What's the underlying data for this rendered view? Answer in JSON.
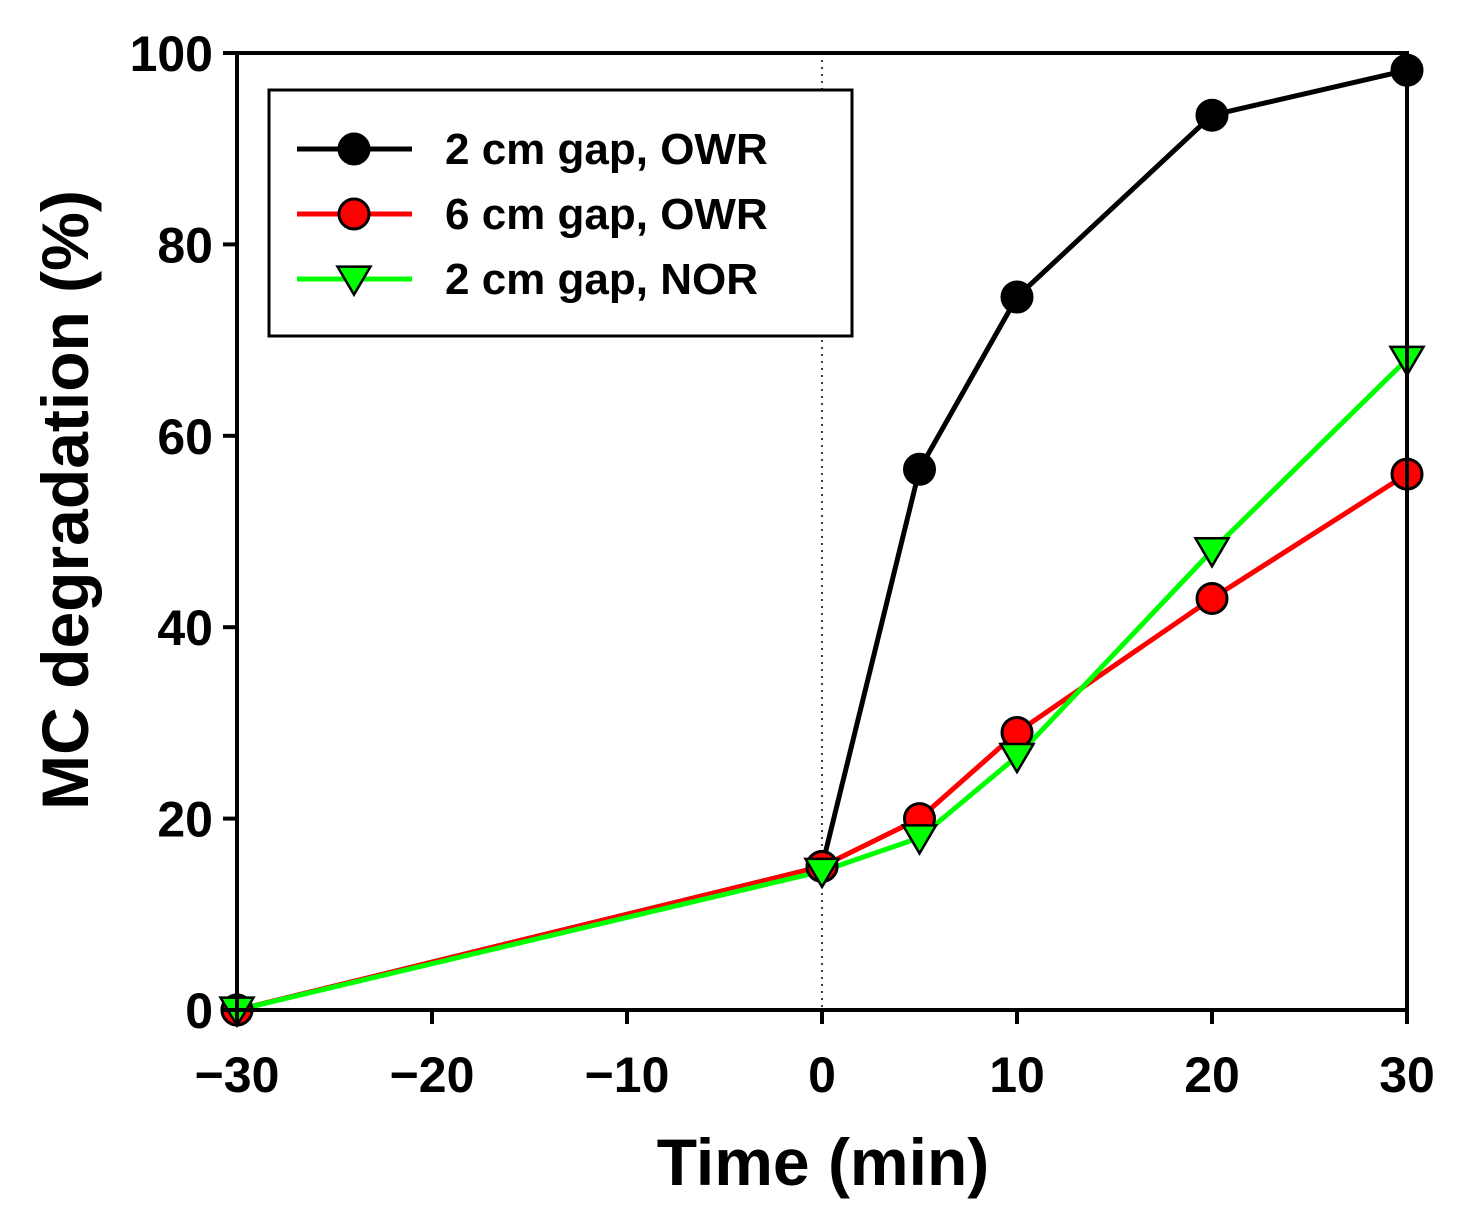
{
  "chart_data": {
    "type": "line",
    "title": "",
    "xlabel": "Time (min)",
    "ylabel": "MC degradation (%)",
    "xlim": [
      -30,
      30
    ],
    "ylim": [
      0,
      100
    ],
    "xticks": [
      -30,
      -20,
      -10,
      0,
      10,
      20,
      30
    ],
    "xtick_labels": [
      "−30",
      "−20",
      "−10",
      "0",
      "10",
      "20",
      "30"
    ],
    "yticks": [
      0,
      20,
      40,
      60,
      80,
      100
    ],
    "ytick_labels": [
      "0",
      "20",
      "40",
      "60",
      "80",
      "100"
    ],
    "reference_line_x": 0,
    "grid": false,
    "legend_position": "top-left",
    "series": [
      {
        "name": "2 cm gap, OWR",
        "color": "#000000",
        "marker": "circle",
        "marker_fill": "#000000",
        "x": [
          -30,
          0,
          5,
          10,
          20,
          30
        ],
        "y": [
          0,
          15,
          56.5,
          74.5,
          93.5,
          98.2
        ]
      },
      {
        "name": "6 cm gap, OWR",
        "color": "#ff0000",
        "marker": "circle",
        "marker_fill": "#ff0000",
        "x": [
          -30,
          0,
          5,
          10,
          20,
          30
        ],
        "y": [
          0,
          15,
          20,
          29,
          43,
          56
        ]
      },
      {
        "name": "2 cm gap, NOR",
        "color": "#00ff00",
        "marker": "triangle-down",
        "marker_fill": "#00ff00",
        "x": [
          -30,
          0,
          5,
          10,
          20,
          30
        ],
        "y": [
          0,
          14.5,
          18,
          26.5,
          48,
          68
        ]
      }
    ]
  }
}
